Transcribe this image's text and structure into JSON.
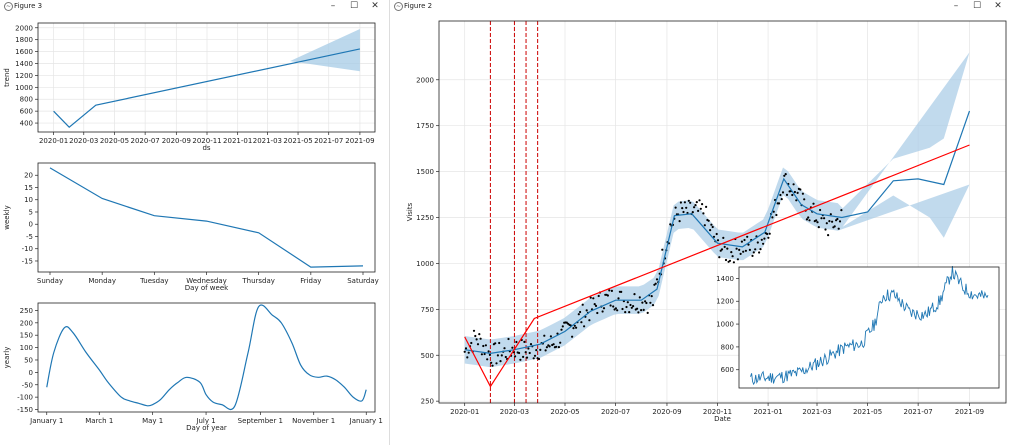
{
  "windows": {
    "left": {
      "title": "Figure 3",
      "minimize": "–",
      "maximize": "☐",
      "close": "✕"
    },
    "right": {
      "title": "Figure 2",
      "minimize": "–",
      "maximize": "☐",
      "close": "✕"
    }
  },
  "chart_data": [
    {
      "type": "line",
      "ylabel": "trend",
      "xlabel": "ds",
      "color": "#1f77b4",
      "x_ticks": [
        "2020-01",
        "2020-03",
        "2020-05",
        "2020-07",
        "2020-09",
        "2020-11",
        "2021-01",
        "2021-03",
        "2021-05",
        "2021-07",
        "2021-09"
      ],
      "y_ticks": [
        "400",
        "600",
        "800",
        "1000",
        "1200",
        "1400",
        "1600",
        "1800",
        "2000"
      ],
      "ylim": [
        250,
        2080
      ],
      "xlim": [
        "2019-12-01",
        "2021-10-01"
      ],
      "series": [
        {
          "x": [
            "2020-01-01",
            "2020-02-01",
            "2020-03-25",
            "2021-09-01"
          ],
          "y": [
            600,
            330,
            700,
            1645
          ]
        }
      ],
      "uncertainty": {
        "x": [
          "2021-04-15",
          "2021-09-01"
        ],
        "lower": [
          1440,
          1270
        ],
        "upper": [
          1440,
          1980
        ]
      }
    },
    {
      "type": "line",
      "ylabel": "weekly",
      "xlabel": "Day of week",
      "color": "#1f77b4",
      "categories": [
        "Sunday",
        "Monday",
        "Tuesday",
        "Wednesday",
        "Thursday",
        "Friday",
        "Saturday"
      ],
      "values": [
        23,
        10.5,
        3.5,
        1.3,
        -3.5,
        -17.5,
        -17
      ],
      "y_ticks": [
        "-15",
        "-10",
        "-5",
        "0",
        "5",
        "10",
        "15",
        "20"
      ],
      "ylim": [
        -19.5,
        25
      ]
    },
    {
      "type": "line",
      "ylabel": "yearly",
      "xlabel": "Day of year",
      "color": "#1f77b4",
      "x_ticks": [
        "January 1",
        "March 1",
        "May 1",
        "July 1",
        "September 1",
        "November 1",
        "January 1"
      ],
      "y_ticks": [
        "-150",
        "-100",
        "-50",
        "0",
        "50",
        "100",
        "150",
        "200",
        "250"
      ],
      "ylim": [
        -160,
        280
      ],
      "series": [
        {
          "x_days": [
            0,
            8,
            20,
            30,
            45,
            60,
            70,
            85,
            95,
            105,
            115,
            121,
            130,
            140,
            150,
            160,
            175,
            182,
            190,
            200,
            215,
            230,
            242,
            258,
            268,
            280,
            290,
            300,
            310,
            320,
            330,
            340,
            350,
            360,
            365
          ],
          "y": [
            -60,
            80,
            180,
            160,
            80,
            10,
            -40,
            -100,
            -115,
            -125,
            -135,
            -130,
            -110,
            -70,
            -40,
            -20,
            -40,
            -90,
            -120,
            -130,
            -135,
            80,
            265,
            230,
            200,
            120,
            30,
            -10,
            -20,
            -15,
            -30,
            -60,
            -100,
            -115,
            -70
          ]
        }
      ]
    },
    {
      "type": "scatter",
      "xlabel": "Date",
      "ylabel": "Visits",
      "x_ticks": [
        "2020-01",
        "2020-03",
        "2020-05",
        "2020-07",
        "2020-09",
        "2020-11",
        "2021-01",
        "2021-03",
        "2021-05",
        "2021-07",
        "2021-09"
      ],
      "y_ticks": [
        "250",
        "500",
        "750",
        "1000",
        "1250",
        "1500",
        "1750",
        "2000"
      ],
      "ylim": [
        240,
        2320
      ],
      "xlim": [
        "2019-12-01",
        "2021-10-15"
      ],
      "colors": {
        "points": "#000000",
        "forecast": "#1f77b4",
        "band": "#a6cbe6",
        "trend": "#ff0000",
        "changepoints": "#cc0000"
      },
      "actual": {
        "x": [
          "2020-01-01",
          "2020-01-15",
          "2020-02-01",
          "2020-02-15",
          "2020-03-01",
          "2020-03-15",
          "2020-04-01",
          "2020-04-15",
          "2020-05-01",
          "2020-05-15",
          "2020-06-01",
          "2020-06-15",
          "2020-07-01",
          "2020-07-15",
          "2020-08-01",
          "2020-08-15",
          "2020-08-25",
          "2020-09-05",
          "2020-09-15",
          "2020-10-01",
          "2020-10-15",
          "2020-11-01",
          "2020-11-15",
          "2020-12-01",
          "2020-12-15",
          "2020-12-28",
          "2021-01-10",
          "2021-01-20",
          "2021-02-01",
          "2021-02-15",
          "2021-03-01",
          "2021-03-15",
          "2021-03-31"
        ],
        "y": [
          520,
          600,
          500,
          510,
          540,
          520,
          540,
          560,
          620,
          690,
          750,
          800,
          810,
          790,
          800,
          790,
          1000,
          1200,
          1280,
          1280,
          1280,
          1100,
          1050,
          1100,
          1080,
          1150,
          1300,
          1450,
          1400,
          1300,
          1250,
          1200,
          1250
        ]
      },
      "forecast": {
        "x": [
          "2020-01-01",
          "2020-02-01",
          "2020-03-01",
          "2020-04-01",
          "2020-05-01",
          "2020-06-01",
          "2020-07-01",
          "2020-08-01",
          "2020-08-20",
          "2020-09-10",
          "2020-10-01",
          "2020-11-01",
          "2020-12-01",
          "2020-12-28",
          "2021-01-20",
          "2021-02-10",
          "2021-03-01",
          "2021-03-31",
          "2021-05-01",
          "2021-06-01",
          "2021-07-01",
          "2021-08-01",
          "2021-09-01"
        ],
        "y": [
          530,
          510,
          530,
          560,
          630,
          740,
          800,
          800,
          860,
          1260,
          1270,
          1110,
          1090,
          1170,
          1460,
          1320,
          1270,
          1250,
          1280,
          1450,
          1460,
          1430,
          1830
        ]
      },
      "forecast_band": {
        "x": [
          "2021-04-01",
          "2021-06-01",
          "2021-07-15",
          "2021-08-01",
          "2021-09-01"
        ],
        "lower": [
          1200,
          1370,
          1250,
          1140,
          1430
        ],
        "upper": [
          1300,
          1570,
          1630,
          1680,
          2150
        ]
      },
      "trend": {
        "x": [
          "2020-01-01",
          "2020-02-01",
          "2020-03-25",
          "2021-09-01"
        ],
        "y": [
          600,
          330,
          700,
          1645
        ]
      },
      "changepoints": [
        "2020-02-01",
        "2020-03-01",
        "2020-03-15",
        "2020-03-29"
      ]
    },
    {
      "type": "line",
      "title": "",
      "color": "#1f77b4",
      "y_ticks": [
        "600",
        "800",
        "1000",
        "1200",
        "1400"
      ],
      "x_ticks": [],
      "ylim": [
        440,
        1500
      ],
      "series": [
        {
          "x": [
            "2020-01-01",
            "2020-02-01",
            "2020-03-01",
            "2020-04-01",
            "2020-05-01",
            "2020-06-01",
            "2020-07-01",
            "2020-08-01",
            "2020-08-25",
            "2020-09-10",
            "2020-10-01",
            "2020-11-01",
            "2020-12-01",
            "2020-12-28",
            "2021-01-20",
            "2021-02-10",
            "2021-03-01",
            "2021-03-31"
          ],
          "y": [
            520,
            530,
            540,
            570,
            640,
            720,
            800,
            830,
            1000,
            1250,
            1260,
            1100,
            1080,
            1200,
            1460,
            1320,
            1260,
            1230
          ]
        }
      ]
    }
  ]
}
